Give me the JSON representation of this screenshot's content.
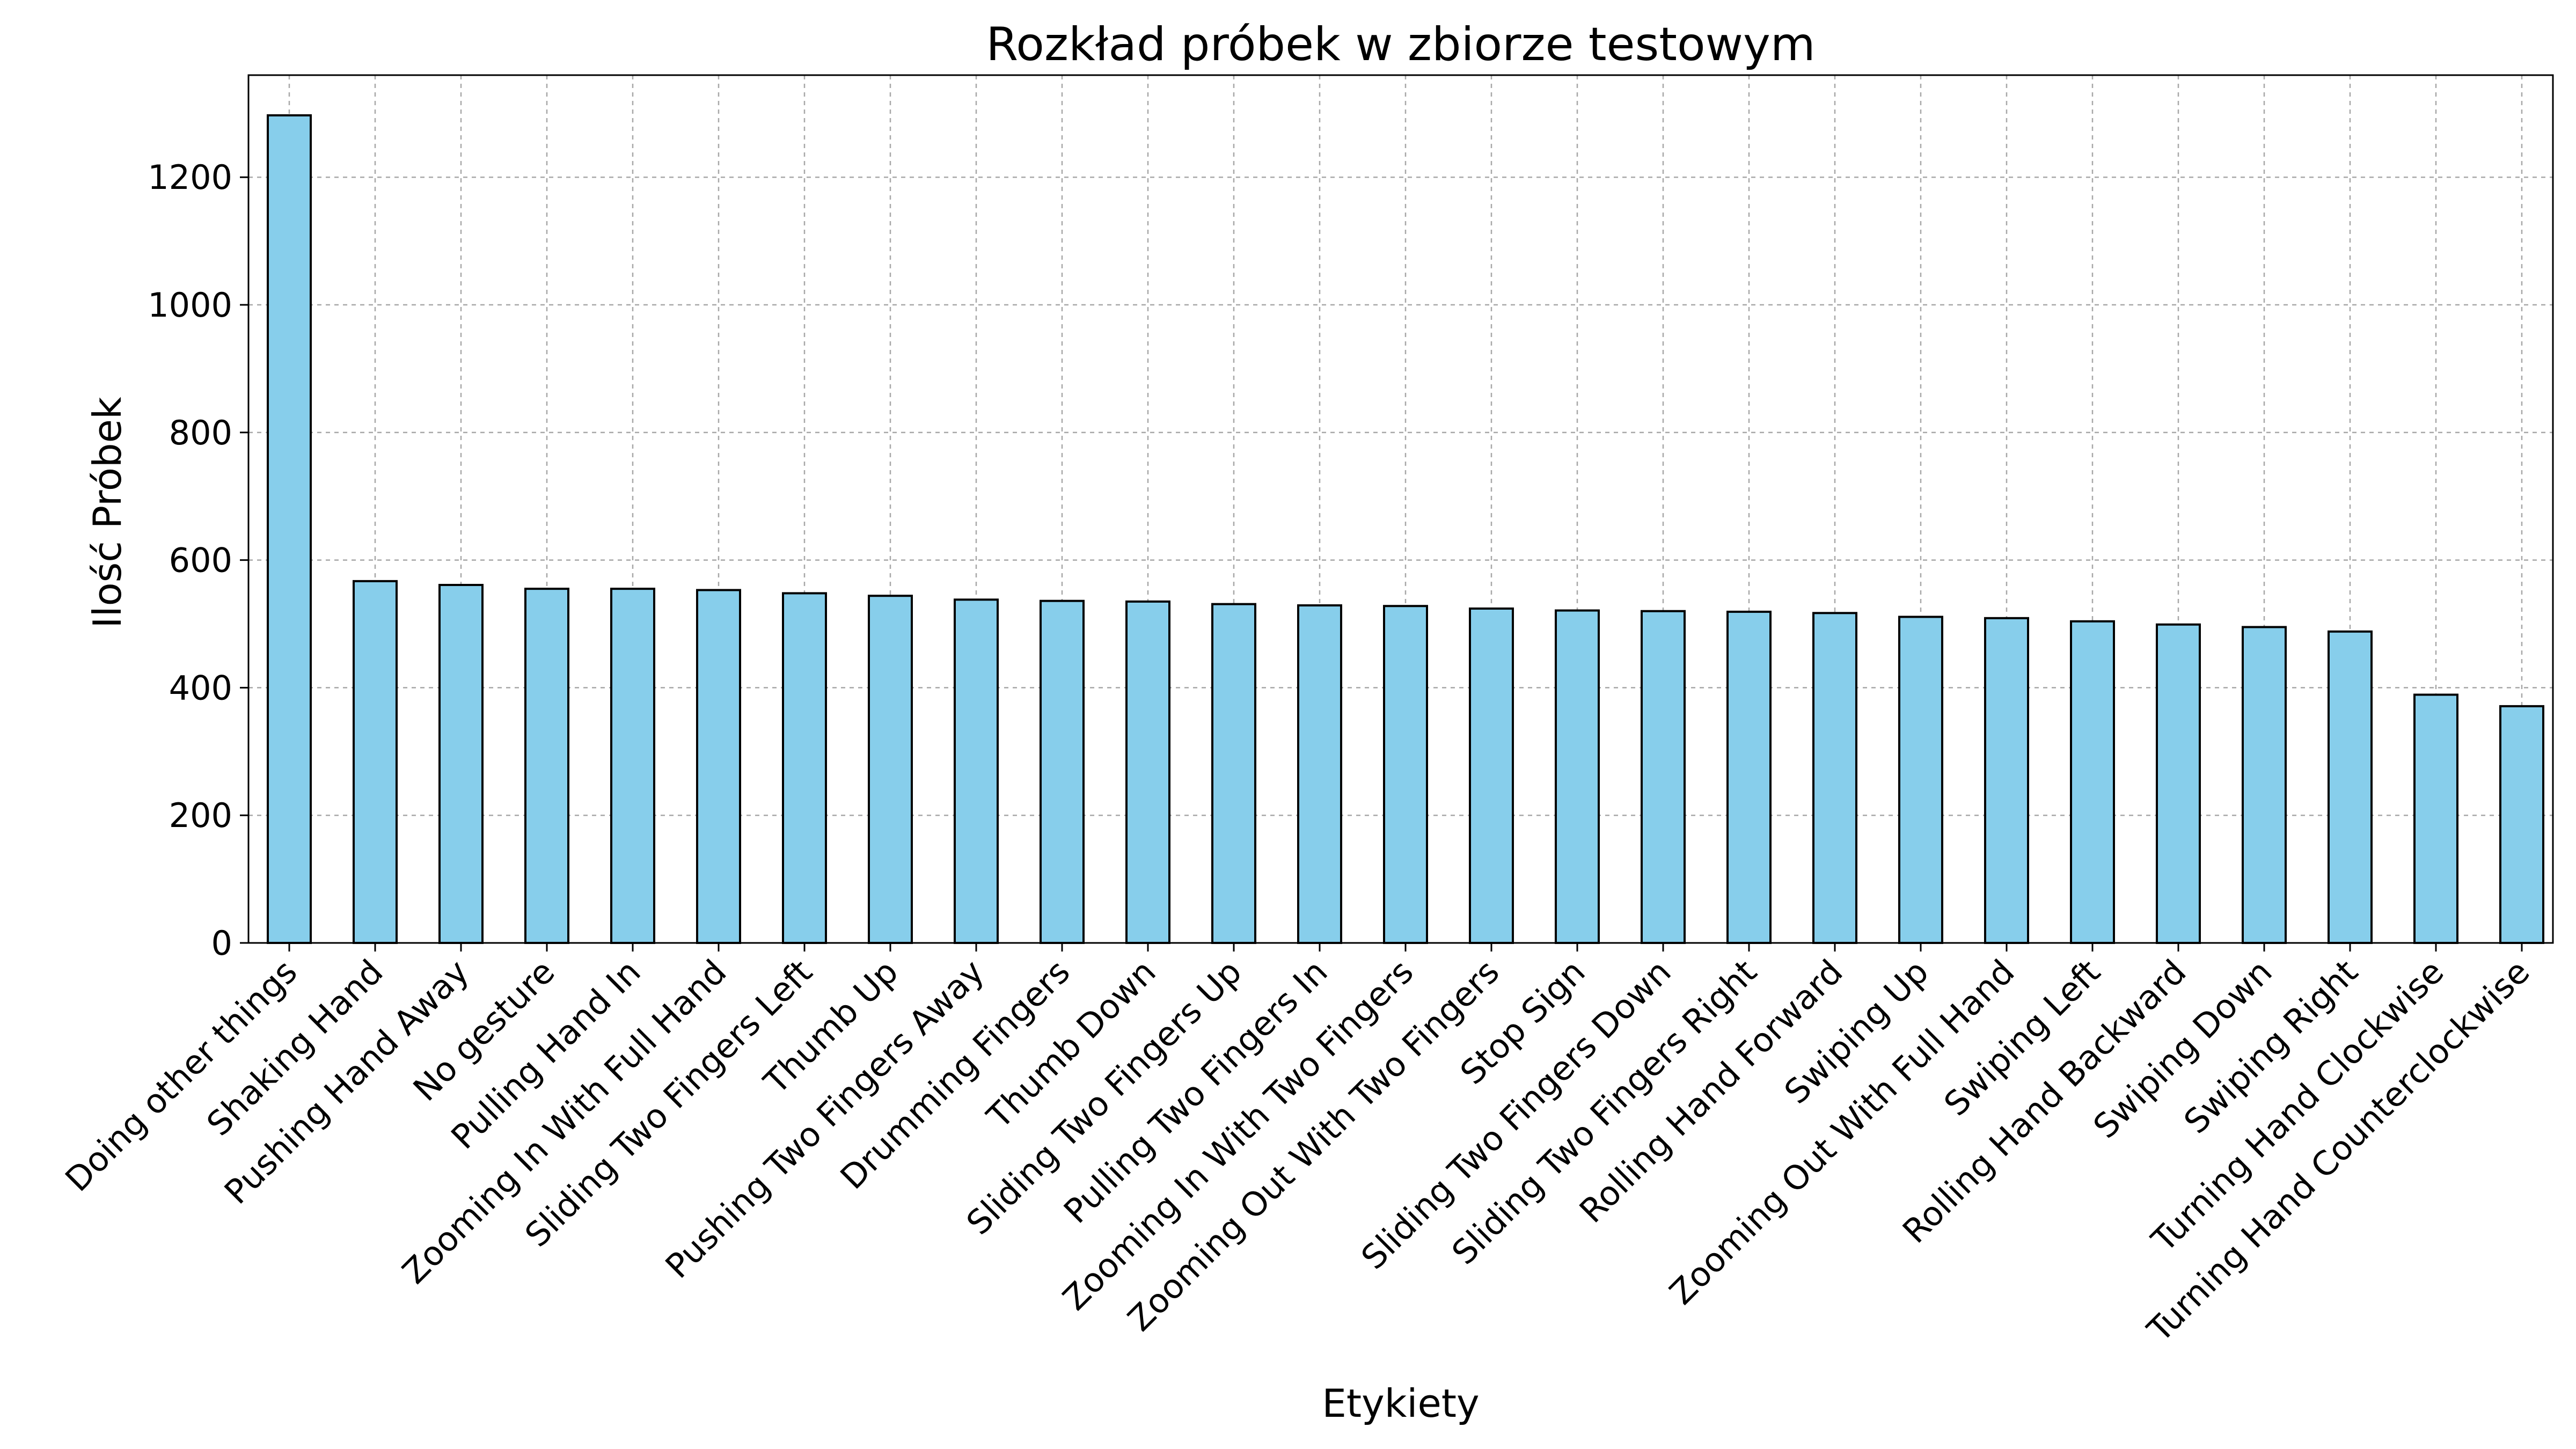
{
  "chart_data": {
    "type": "bar",
    "title": "Rozkład próbek w zbiorze testowym",
    "xlabel": "Etykiety",
    "ylabel": "Ilość Próbek",
    "categories": [
      "Doing other things",
      "Shaking Hand",
      "Pushing Hand Away",
      "No gesture",
      "Pulling Hand In",
      "Zooming In With Full Hand",
      "Sliding Two Fingers Left",
      "Thumb Up",
      "Pushing Two Fingers Away",
      "Drumming Fingers",
      "Thumb Down",
      "Sliding Two Fingers Up",
      "Pulling Two Fingers In",
      "Zooming In With Two Fingers",
      "Zooming Out With Two Fingers",
      "Stop Sign",
      "Sliding Two Fingers Down",
      "Sliding Two Fingers Right",
      "Rolling Hand Forward",
      "Swiping Up",
      "Zooming Out With Full Hand",
      "Swiping Left",
      "Rolling Hand Backward",
      "Swiping Down",
      "Swiping Right",
      "Turning Hand Clockwise",
      "Turning Hand Counterclockwise"
    ],
    "values": [
      1297,
      567,
      561,
      555,
      555,
      553,
      548,
      544,
      538,
      536,
      535,
      531,
      529,
      528,
      524,
      521,
      520,
      519,
      517,
      511,
      509,
      504,
      499,
      495,
      488,
      389,
      371
    ],
    "ylim": [
      0,
      1360
    ],
    "yticks": [
      0,
      200,
      400,
      600,
      800,
      1000,
      1200
    ],
    "grid": true,
    "colors": {
      "bar_fill": "#87ceeb",
      "bar_edge": "#000000",
      "grid": "#a8a8a8"
    }
  }
}
